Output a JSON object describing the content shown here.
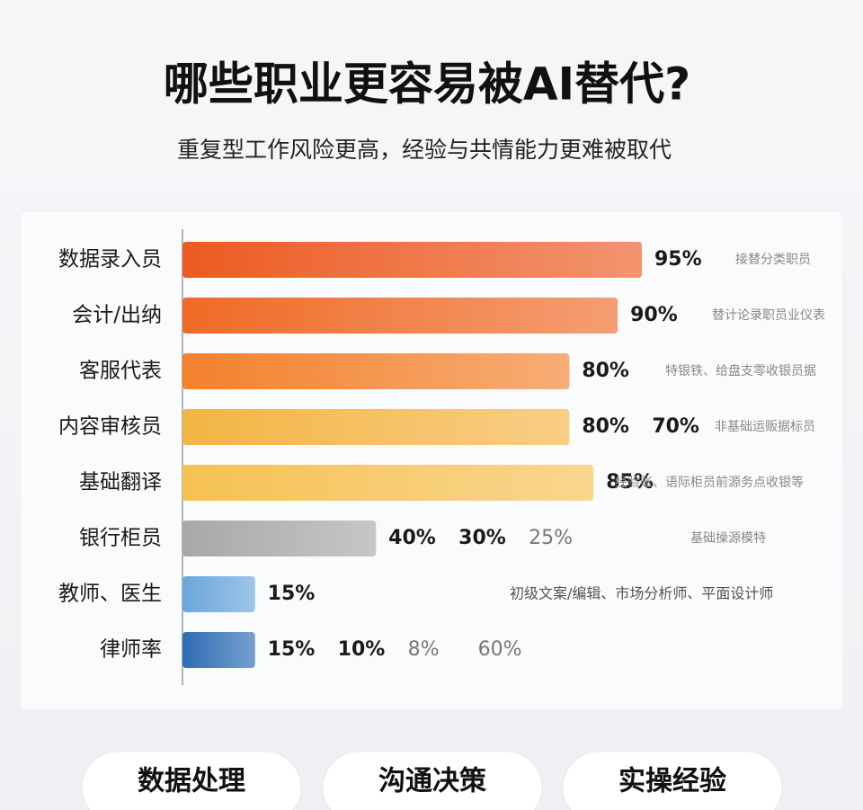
{
  "title": "哪些职业更容易被AI替代?",
  "subtitle": "重复型工作风险更高，经验与共情能力更难被取代",
  "chart_data": {
    "type": "bar",
    "orientation": "horizontal",
    "categories": [
      "数据录入员",
      "会计/出纳",
      "客服代表",
      "内容审核员",
      "基础翻译",
      "银行柜员",
      "教师、医生",
      "律师率"
    ],
    "values": [
      95,
      90,
      80,
      80,
      85,
      40,
      15,
      15
    ],
    "value_labels": [
      "95%",
      "90%",
      "80%",
      "80%",
      "85%",
      "40%",
      "15%",
      "15%"
    ],
    "extra_labels": [
      [],
      [],
      [],
      [
        "70%"
      ],
      [],
      [
        "30%",
        "25%"
      ],
      [],
      [
        "10%",
        "8%",
        "60%"
      ]
    ],
    "notes": [
      "接替分类职员",
      "替计论录职员业仪表",
      "特银铁、给盘支零收银员据",
      "非基础运贩据标员",
      "经验账、语际柜员前源务点收银等",
      "基础操源模特",
      "初级文案/编辑、市场分析师、平面设计师",
      ""
    ],
    "colors": [
      "#ec5b22",
      "#ef6a26",
      "#f3812c",
      "#f4b444",
      "#f6c153",
      "#a8a8a8",
      "#6aa6dc",
      "#2d6db4"
    ]
  },
  "buttons": [
    "数据处理",
    "沟通决策",
    "实操经验"
  ]
}
